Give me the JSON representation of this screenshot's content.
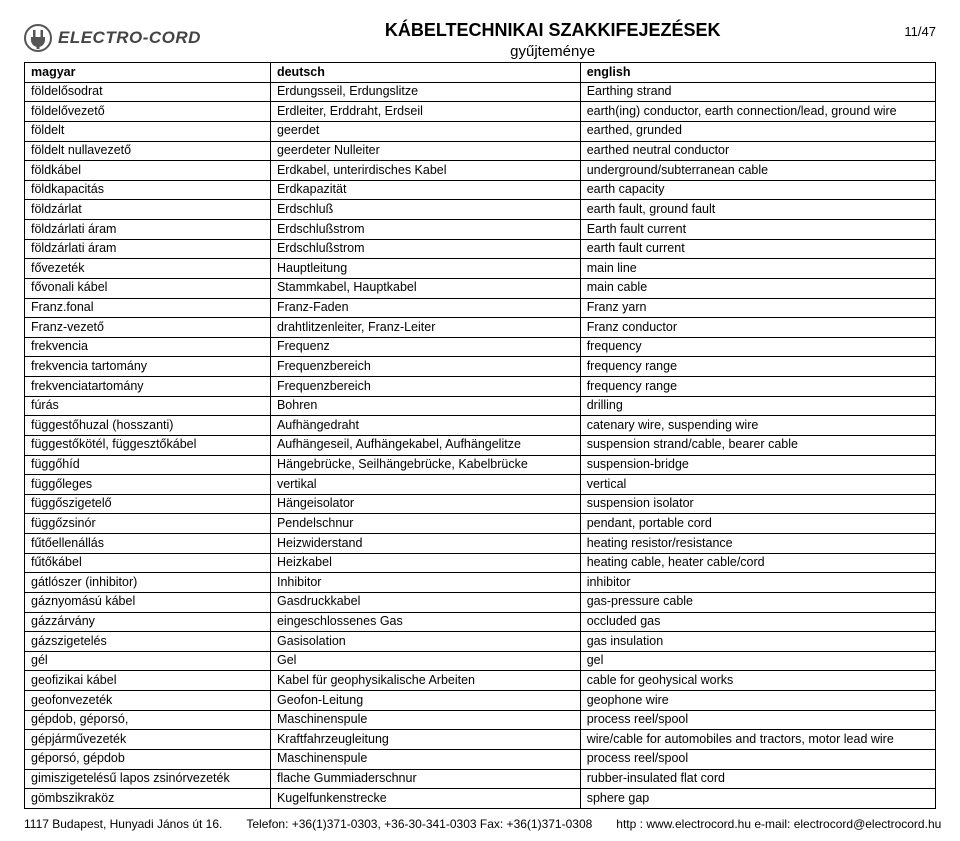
{
  "page": {
    "title": "KÁBELTECHNIKAI SZAKKIFEJEZÉSEK",
    "subtitle": "gyűjteménye",
    "logo_text": "ELECTRO-CORD",
    "page_num": "11/47"
  },
  "table": {
    "columns": [
      "magyar",
      "deutsch",
      "english"
    ],
    "rows": [
      [
        "földelősodrat",
        "Erdungsseil, Erdungslitze",
        "Earthing strand"
      ],
      [
        "földelővezető",
        "Erdleiter, Erddraht, Erdseil",
        "earth(ing) conductor, earth connection/lead, ground wire"
      ],
      [
        "földelt",
        "geerdet",
        "earthed, grunded"
      ],
      [
        "földelt nullavezető",
        "geerdeter Nulleiter",
        "earthed neutral conductor"
      ],
      [
        "földkábel",
        "Erdkabel, unterirdisches Kabel",
        "underground/subterranean cable"
      ],
      [
        "földkapacitás",
        "Erdkapazität",
        "earth capacity"
      ],
      [
        "földzárlat",
        "Erdschluß",
        "earth fault, ground fault"
      ],
      [
        "földzárlati áram",
        "Erdschlußstrom",
        "Earth fault current"
      ],
      [
        "földzárlati áram",
        "Erdschlußstrom",
        "earth fault current"
      ],
      [
        "fővezeték",
        "Hauptleitung",
        "main line"
      ],
      [
        "fővonali kábel",
        "Stammkabel, Hauptkabel",
        "main cable"
      ],
      [
        "Franz.fonal",
        "Franz-Faden",
        "Franz yarn"
      ],
      [
        "Franz-vezető",
        "drahtlitzenleiter, Franz-Leiter",
        "Franz conductor"
      ],
      [
        "frekvencia",
        "Frequenz",
        "frequency"
      ],
      [
        "frekvencia tartomány",
        "Frequenzbereich",
        "frequency range"
      ],
      [
        "frekvenciatartomány",
        "Frequenzbereich",
        "frequency range"
      ],
      [
        "fúrás",
        "Bohren",
        "drilling"
      ],
      [
        "függestőhuzal (hosszanti)",
        "Aufhängedraht",
        "catenary wire, suspending wire"
      ],
      [
        "függestőkötél, függesztőkábel",
        "Aufhängeseil, Aufhängekabel, Aufhängelitze",
        "suspension strand/cable, bearer cable"
      ],
      [
        "függőhíd",
        "Hängebrücke, Seilhängebrücke, Kabelbrücke",
        "suspension-bridge"
      ],
      [
        "függőleges",
        "vertikal",
        "vertical"
      ],
      [
        "függőszigetelő",
        "Hängeisolator",
        "suspension isolator"
      ],
      [
        "függőzsinór",
        "Pendelschnur",
        "pendant, portable cord"
      ],
      [
        "fűtőellenállás",
        "Heizwiderstand",
        "heating resistor/resistance"
      ],
      [
        "fűtőkábel",
        "Heizkabel",
        "heating cable, heater cable/cord"
      ],
      [
        "gátlószer (inhibitor)",
        "Inhibitor",
        "inhibitor"
      ],
      [
        "gáznyomású kábel",
        "Gasdruckkabel",
        "gas-pressure cable"
      ],
      [
        "gázzárvány",
        "eingeschlossenes Gas",
        "occluded gas"
      ],
      [
        "gázszigetelés",
        "Gasisolation",
        "gas insulation"
      ],
      [
        "gél",
        "Gel",
        "gel"
      ],
      [
        "geofizikai kábel",
        "Kabel für geophysikalische Arbeiten",
        "cable for geohysical works"
      ],
      [
        "geofonvezeték",
        "Geofon-Leitung",
        "geophone wire"
      ],
      [
        "gépdob, géporsó,",
        "Maschinenspule",
        "process reel/spool"
      ],
      [
        "gépjárművezeték",
        "Kraftfahrzeugleitung",
        "wire/cable for automobiles and tractors, motor lead wire"
      ],
      [
        "géporsó, gépdob",
        "Maschinenspule",
        "process reel/spool"
      ],
      [
        "gimiszigetelésű lapos zsinórvezeték",
        "flache Gummiaderschnur",
        "rubber-insulated flat cord"
      ],
      [
        "gömbszikraköz",
        "Kugelfunkenstrecke",
        "sphere gap"
      ]
    ]
  },
  "footer": {
    "address": "1117 Budapest, Hunyadi János út 16.",
    "phone": "Telefon: +36(1)371-0303, +36-30-341-0303 Fax: +36(1)371-0308",
    "web": "http : www.electrocord.hu  e-mail: electrocord@electrocord.hu"
  }
}
